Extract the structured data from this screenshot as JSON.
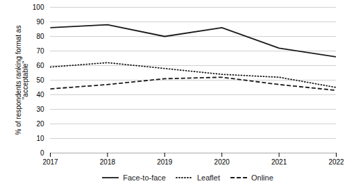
{
  "chart_data": {
    "type": "line",
    "x": [
      2017,
      2018,
      2019,
      2020,
      2021,
      2022
    ],
    "series": [
      {
        "name": "Face-to-face",
        "color": "#1a1a1a",
        "line_style": "solid",
        "values": [
          86,
          88,
          80,
          86,
          72,
          66
        ]
      },
      {
        "name": "Leaflet",
        "color": "#1a1a1a",
        "line_style": "dotted",
        "values": [
          59,
          62,
          58,
          54,
          52,
          45
        ]
      },
      {
        "name": "Online",
        "color": "#1a1a1a",
        "line_style": "dashed",
        "values": [
          44,
          47,
          51,
          52,
          47,
          43
        ]
      }
    ],
    "ylabel": "% of respondents ranking format as\n\"acceptable\"",
    "xlim": [
      2017,
      2022
    ],
    "xticks": [
      2017,
      2018,
      2019,
      2020,
      2021,
      2022
    ],
    "ylim": [
      0,
      100
    ],
    "yticks": [
      0,
      10,
      20,
      30,
      40,
      50,
      60,
      70,
      80,
      90,
      100
    ],
    "grid": "y",
    "legend": "bottom"
  }
}
